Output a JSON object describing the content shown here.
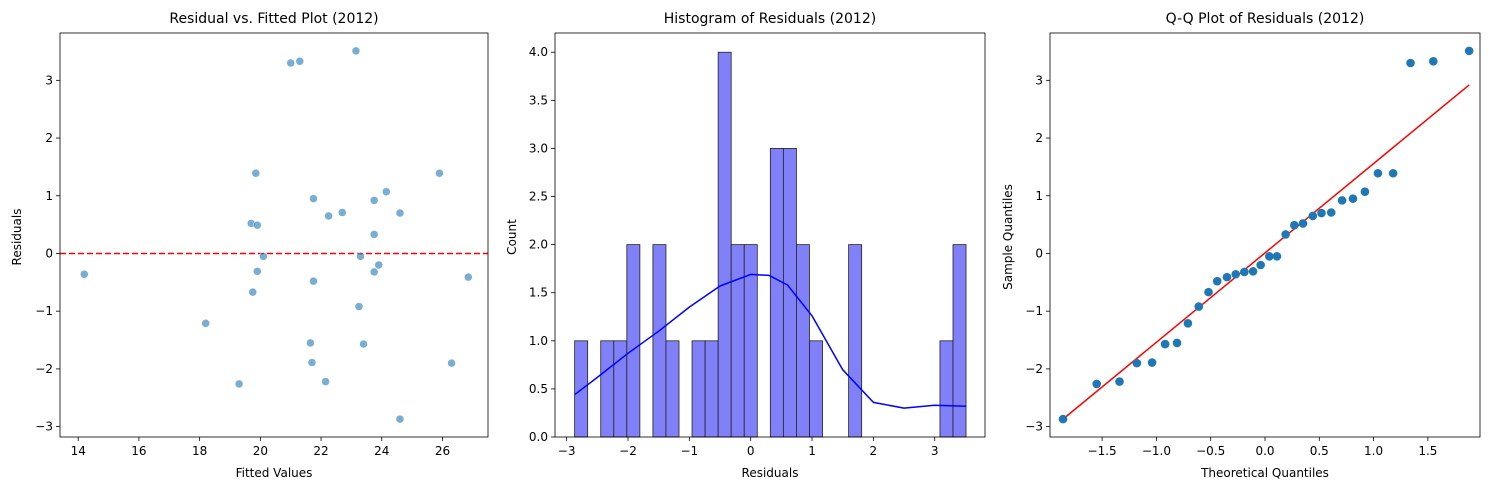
{
  "chart_data": [
    {
      "type": "scatter",
      "title": "Residual vs. Fitted Plot (2012)",
      "xlabel": "Fitted Values",
      "ylabel": "Residuals",
      "xlim": [
        13.4,
        27.5
      ],
      "ylim": [
        -3.18,
        3.82
      ],
      "xticks": [
        14,
        16,
        18,
        20,
        22,
        24,
        26
      ],
      "yticks": [
        -3,
        -2,
        -1,
        0,
        1,
        2,
        3
      ],
      "grid": false,
      "point_color": "#1f77b4",
      "point_alpha": 0.6,
      "reference_line": {
        "y": 0,
        "color": "#ff0000",
        "style": "dashed"
      },
      "points": [
        {
          "x": 14.2,
          "y": -0.36
        },
        {
          "x": 18.2,
          "y": -1.21
        },
        {
          "x": 19.3,
          "y": -2.26
        },
        {
          "x": 19.7,
          "y": 0.52
        },
        {
          "x": 19.75,
          "y": -0.67
        },
        {
          "x": 19.85,
          "y": 1.39
        },
        {
          "x": 19.9,
          "y": 0.49
        },
        {
          "x": 19.9,
          "y": -0.31
        },
        {
          "x": 20.1,
          "y": -0.05
        },
        {
          "x": 21.0,
          "y": 3.3
        },
        {
          "x": 21.3,
          "y": 3.33
        },
        {
          "x": 21.65,
          "y": -1.55
        },
        {
          "x": 21.7,
          "y": -1.89
        },
        {
          "x": 21.75,
          "y": 0.95
        },
        {
          "x": 21.75,
          "y": -0.48
        },
        {
          "x": 22.15,
          "y": -2.22
        },
        {
          "x": 22.25,
          "y": 0.65
        },
        {
          "x": 22.7,
          "y": 0.71
        },
        {
          "x": 23.15,
          "y": 3.51
        },
        {
          "x": 23.25,
          "y": -0.92
        },
        {
          "x": 23.3,
          "y": -0.05
        },
        {
          "x": 23.4,
          "y": -1.57
        },
        {
          "x": 23.75,
          "y": 0.92
        },
        {
          "x": 23.75,
          "y": 0.33
        },
        {
          "x": 23.75,
          "y": -0.32
        },
        {
          "x": 23.9,
          "y": -0.2
        },
        {
          "x": 24.15,
          "y": 1.07
        },
        {
          "x": 24.6,
          "y": 0.7
        },
        {
          "x": 24.6,
          "y": -2.87
        },
        {
          "x": 25.9,
          "y": 1.39
        },
        {
          "x": 26.3,
          "y": -1.9
        },
        {
          "x": 26.85,
          "y": -0.41
        }
      ]
    },
    {
      "type": "bar",
      "title": "Histogram of Residuals (2012)",
      "xlabel": "Residuals",
      "ylabel": "Count",
      "xlim": [
        -3.19,
        3.82
      ],
      "ylim": [
        0,
        4.2
      ],
      "xticks": [
        -3,
        -2,
        -1,
        0,
        1,
        2,
        3
      ],
      "yticks": [
        0.0,
        0.5,
        1.0,
        1.5,
        2.0,
        2.5,
        3.0,
        3.5,
        4.0
      ],
      "grid": false,
      "bar_color": "#8080f8",
      "bar_edge_color": "#222222",
      "kde_color": "#0000ff",
      "bin_start": -2.87,
      "bin_width": 0.2127,
      "counts": [
        1,
        0,
        1,
        1,
        2,
        0,
        2,
        1,
        0,
        1,
        1,
        4,
        2,
        2,
        0,
        3,
        3,
        2,
        1,
        0,
        0,
        2,
        0,
        0,
        0,
        0,
        0,
        0,
        1,
        2
      ],
      "kde": [
        {
          "x": -2.87,
          "y": 0.44
        },
        {
          "x": -2.5,
          "y": 0.62
        },
        {
          "x": -2.0,
          "y": 0.87
        },
        {
          "x": -1.5,
          "y": 1.1
        },
        {
          "x": -1.0,
          "y": 1.35
        },
        {
          "x": -0.5,
          "y": 1.57
        },
        {
          "x": 0.0,
          "y": 1.69
        },
        {
          "x": 0.3,
          "y": 1.68
        },
        {
          "x": 0.6,
          "y": 1.58
        },
        {
          "x": 1.0,
          "y": 1.26
        },
        {
          "x": 1.5,
          "y": 0.7
        },
        {
          "x": 2.0,
          "y": 0.36
        },
        {
          "x": 2.5,
          "y": 0.3
        },
        {
          "x": 3.0,
          "y": 0.33
        },
        {
          "x": 3.51,
          "y": 0.32
        }
      ]
    },
    {
      "type": "scatter",
      "title": "Q-Q Plot of Residuals (2012)",
      "xlabel": "Theoretical Quantiles",
      "ylabel": "Sample Quantiles",
      "xlim": [
        -1.98,
        1.98
      ],
      "ylim": [
        -3.18,
        3.82
      ],
      "xticks": [
        -1.5,
        -1.0,
        -0.5,
        0.0,
        0.5,
        1.0,
        1.5
      ],
      "yticks": [
        -3,
        -2,
        -1,
        0,
        1,
        2,
        3
      ],
      "grid": false,
      "point_color": "#1f77b4",
      "line_color": "#ff0000",
      "fit_line": [
        {
          "x": -1.86,
          "y": -2.87
        },
        {
          "x": 1.88,
          "y": 2.92
        }
      ],
      "points": [
        {
          "x": -1.86,
          "y": -2.87
        },
        {
          "x": -1.55,
          "y": -2.26
        },
        {
          "x": -1.34,
          "y": -2.22
        },
        {
          "x": -1.18,
          "y": -1.9
        },
        {
          "x": -1.04,
          "y": -1.89
        },
        {
          "x": -0.92,
          "y": -1.57
        },
        {
          "x": -0.81,
          "y": -1.55
        },
        {
          "x": -0.71,
          "y": -1.21
        },
        {
          "x": -0.61,
          "y": -0.92
        },
        {
          "x": -0.52,
          "y": -0.67
        },
        {
          "x": -0.44,
          "y": -0.48
        },
        {
          "x": -0.35,
          "y": -0.41
        },
        {
          "x": -0.27,
          "y": -0.36
        },
        {
          "x": -0.19,
          "y": -0.32
        },
        {
          "x": -0.11,
          "y": -0.31
        },
        {
          "x": -0.04,
          "y": -0.2
        },
        {
          "x": 0.04,
          "y": -0.05
        },
        {
          "x": 0.11,
          "y": -0.05
        },
        {
          "x": 0.19,
          "y": 0.33
        },
        {
          "x": 0.27,
          "y": 0.49
        },
        {
          "x": 0.35,
          "y": 0.52
        },
        {
          "x": 0.44,
          "y": 0.65
        },
        {
          "x": 0.52,
          "y": 0.7
        },
        {
          "x": 0.61,
          "y": 0.71
        },
        {
          "x": 0.71,
          "y": 0.92
        },
        {
          "x": 0.81,
          "y": 0.95
        },
        {
          "x": 0.92,
          "y": 1.07
        },
        {
          "x": 1.04,
          "y": 1.39
        },
        {
          "x": 1.18,
          "y": 1.39
        },
        {
          "x": 1.34,
          "y": 3.3
        },
        {
          "x": 1.55,
          "y": 3.33
        },
        {
          "x": 1.88,
          "y": 3.51
        }
      ]
    }
  ]
}
